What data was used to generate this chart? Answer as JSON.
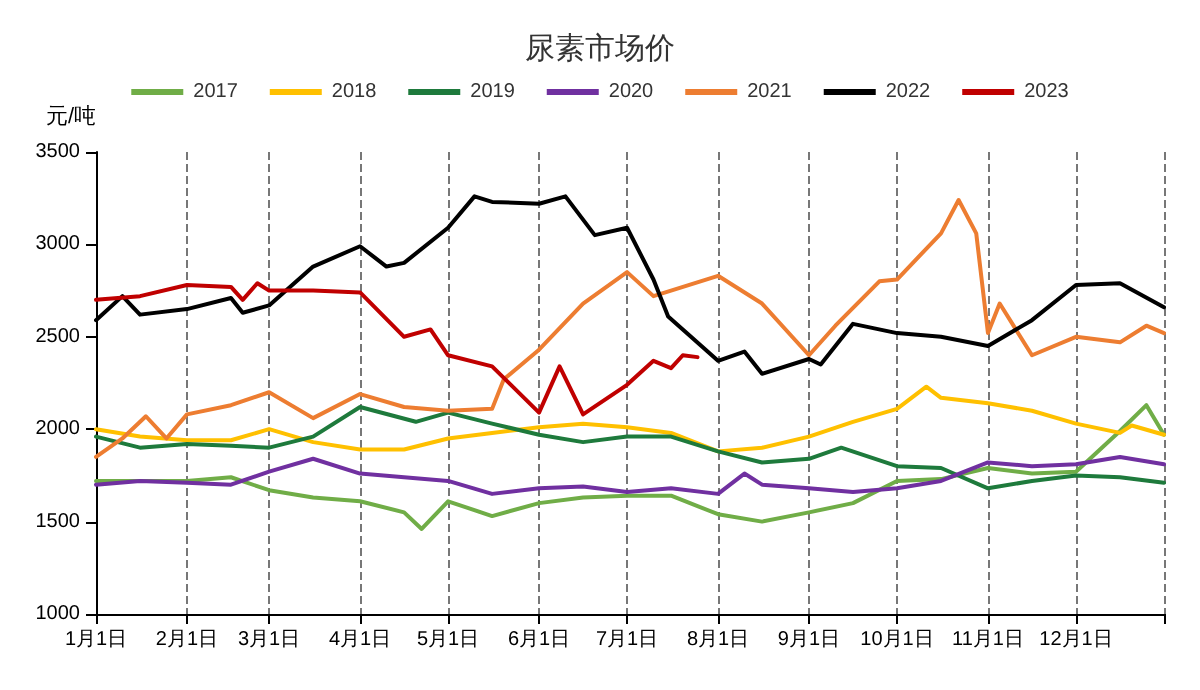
{
  "chart_data": {
    "type": "line",
    "title": "尿素市场价",
    "ylabel": "元/吨",
    "xlim": [
      "--01-01",
      "--12-31"
    ],
    "ylim": [
      1000,
      3500
    ],
    "yticks": [
      1000,
      1500,
      2000,
      2500,
      3000,
      3500
    ],
    "xticks": [
      {
        "value": "--01-01",
        "label": "1月1日"
      },
      {
        "value": "--02-01",
        "label": "2月1日"
      },
      {
        "value": "--03-01",
        "label": "3月1日"
      },
      {
        "value": "--04-01",
        "label": "4月1日"
      },
      {
        "value": "--05-01",
        "label": "5月1日"
      },
      {
        "value": "--06-01",
        "label": "6月1日"
      },
      {
        "value": "--07-01",
        "label": "7月1日"
      },
      {
        "value": "--08-01",
        "label": "8月1日"
      },
      {
        "value": "--09-01",
        "label": "9月1日"
      },
      {
        "value": "--10-01",
        "label": "10月1日"
      },
      {
        "value": "--11-01",
        "label": "11月1日"
      },
      {
        "value": "--12-01",
        "label": "12月1日"
      },
      {
        "value": "--12-31",
        "label": null
      }
    ],
    "grid": "x",
    "legend": "top",
    "marker": "none",
    "line_style": "solid",
    "series": [
      {
        "name": "2017",
        "color": "#70ad47",
        "x": [
          "--01-01",
          "--01-16",
          "--02-01",
          "--02-16",
          "--03-01",
          "--03-16",
          "--04-01",
          "--04-16",
          "--04-22",
          "--05-01",
          "--05-16",
          "--06-01",
          "--06-16",
          "--07-01",
          "--07-16",
          "--08-01",
          "--08-16",
          "--09-01",
          "--09-16",
          "--10-01",
          "--10-16",
          "--11-01",
          "--11-16",
          "--12-01",
          "--12-16",
          "--12-25",
          "--12-31"
        ],
        "values": [
          1720,
          1720,
          1720,
          1740,
          1670,
          1630,
          1610,
          1550,
          1460,
          1610,
          1530,
          1600,
          1630,
          1640,
          1640,
          1540,
          1500,
          1550,
          1600,
          1720,
          1730,
          1790,
          1760,
          1770,
          1990,
          2130,
          1970
        ]
      },
      {
        "name": "2018",
        "color": "#ffc000",
        "x": [
          "--01-01",
          "--01-16",
          "--02-01",
          "--02-16",
          "--03-01",
          "--03-16",
          "--04-01",
          "--04-16",
          "--05-01",
          "--05-16",
          "--06-01",
          "--06-16",
          "--07-01",
          "--07-16",
          "--08-01",
          "--08-16",
          "--09-01",
          "--09-16",
          "--10-01",
          "--10-11",
          "--10-16",
          "--11-01",
          "--11-16",
          "--12-01",
          "--12-16",
          "--12-20",
          "--12-31"
        ],
        "values": [
          2000,
          1960,
          1940,
          1940,
          2000,
          1930,
          1890,
          1890,
          1950,
          1980,
          2010,
          2030,
          2010,
          1980,
          1880,
          1900,
          1960,
          2040,
          2110,
          2230,
          2170,
          2140,
          2100,
          2030,
          1980,
          2020,
          1970
        ]
      },
      {
        "name": "2019",
        "color": "#1e7a3c",
        "x": [
          "--01-01",
          "--01-16",
          "--02-01",
          "--02-16",
          "--03-01",
          "--03-16",
          "--04-01",
          "--04-20",
          "--05-01",
          "--05-16",
          "--06-01",
          "--06-16",
          "--07-01",
          "--07-16",
          "--08-01",
          "--08-16",
          "--09-01",
          "--09-12",
          "--10-01",
          "--10-16",
          "--11-01",
          "--11-16",
          "--12-01",
          "--12-16",
          "--12-31"
        ],
        "values": [
          1960,
          1900,
          1920,
          1910,
          1900,
          1960,
          2120,
          2040,
          2090,
          2030,
          1970,
          1930,
          1960,
          1960,
          1880,
          1820,
          1840,
          1900,
          1800,
          1790,
          1680,
          1720,
          1750,
          1740,
          1710
        ]
      },
      {
        "name": "2020",
        "color": "#7030a0",
        "x": [
          "--01-01",
          "--01-16",
          "--02-01",
          "--02-16",
          "--03-01",
          "--03-16",
          "--04-01",
          "--04-16",
          "--05-01",
          "--05-16",
          "--06-01",
          "--06-16",
          "--07-01",
          "--07-16",
          "--08-01",
          "--08-10",
          "--08-16",
          "--09-01",
          "--09-16",
          "--10-01",
          "--10-16",
          "--11-01",
          "--11-16",
          "--12-01",
          "--12-16",
          "--12-31"
        ],
        "values": [
          1700,
          1720,
          1710,
          1700,
          1770,
          1840,
          1760,
          1740,
          1720,
          1650,
          1680,
          1690,
          1660,
          1680,
          1650,
          1760,
          1700,
          1680,
          1660,
          1680,
          1720,
          1820,
          1800,
          1810,
          1850,
          1810
        ]
      },
      {
        "name": "2021",
        "color": "#ed7d31",
        "x": [
          "--01-01",
          "--01-10",
          "--01-18",
          "--01-25",
          "--02-01",
          "--02-16",
          "--03-01",
          "--03-16",
          "--04-01",
          "--04-16",
          "--05-01",
          "--05-16",
          "--05-20",
          "--06-01",
          "--06-16",
          "--07-01",
          "--07-10",
          "--08-01",
          "--08-16",
          "--09-01",
          "--09-10",
          "--09-25",
          "--10-01",
          "--10-16",
          "--10-22",
          "--10-28",
          "--11-01",
          "--11-05",
          "--11-16",
          "--12-01",
          "--12-16",
          "--12-25",
          "--12-31"
        ],
        "values": [
          1850,
          1950,
          2070,
          1950,
          2080,
          2130,
          2200,
          2060,
          2190,
          2120,
          2100,
          2110,
          2270,
          2430,
          2680,
          2850,
          2720,
          2830,
          2680,
          2400,
          2560,
          2800,
          2810,
          3060,
          3240,
          3060,
          2520,
          2680,
          2400,
          2500,
          2470,
          2560,
          2520
        ]
      },
      {
        "name": "2022",
        "color": "#000000",
        "x": [
          "--01-01",
          "--01-10",
          "--01-16",
          "--02-01",
          "--02-16",
          "--02-20",
          "--03-01",
          "--03-16",
          "--04-01",
          "--04-10",
          "--04-16",
          "--05-01",
          "--05-10",
          "--05-16",
          "--06-01",
          "--06-10",
          "--06-20",
          "--07-01",
          "--07-10",
          "--07-15",
          "--08-01",
          "--08-10",
          "--08-16",
          "--09-01",
          "--09-05",
          "--09-16",
          "--10-01",
          "--10-16",
          "--11-01",
          "--11-16",
          "--12-01",
          "--12-16",
          "--12-31"
        ],
        "values": [
          2590,
          2720,
          2620,
          2650,
          2710,
          2630,
          2670,
          2880,
          2990,
          2880,
          2900,
          3090,
          3260,
          3230,
          3220,
          3260,
          3050,
          3090,
          2810,
          2610,
          2370,
          2420,
          2300,
          2380,
          2350,
          2570,
          2520,
          2500,
          2450,
          2590,
          2780,
          2790,
          2660
        ]
      },
      {
        "name": "2023",
        "color": "#c00000",
        "x": [
          "--01-01",
          "--01-16",
          "--02-01",
          "--02-16",
          "--02-20",
          "--02-25",
          "--03-01",
          "--03-16",
          "--04-01",
          "--04-16",
          "--04-25",
          "--05-01",
          "--05-16",
          "--06-01",
          "--06-08",
          "--06-16",
          "--07-01",
          "--07-10",
          "--07-16",
          "--07-20",
          "--07-25"
        ],
        "values": [
          2700,
          2720,
          2780,
          2770,
          2700,
          2790,
          2750,
          2750,
          2740,
          2500,
          2540,
          2400,
          2340,
          2090,
          2340,
          2080,
          2240,
          2370,
          2330,
          2400,
          2390
        ]
      }
    ]
  }
}
